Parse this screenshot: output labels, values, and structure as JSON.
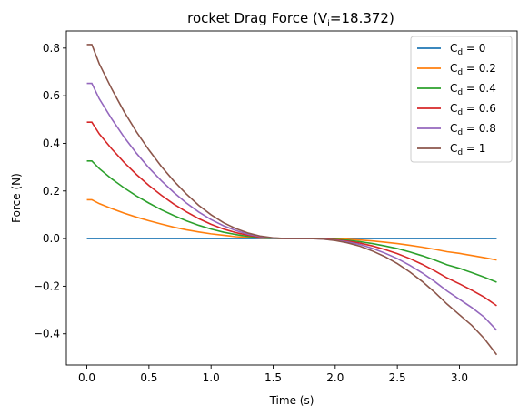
{
  "chart_data": {
    "type": "line",
    "title": "rocket Drag Force (Vᵢ=18.372)",
    "title_main": "rocket Drag Force (V",
    "title_sub": "i",
    "title_tail": "=18.372)",
    "xlabel": "Time (s)",
    "ylabel": "Force (N)",
    "xlim": [
      -0.165,
      3.465
    ],
    "ylim": [
      -0.531,
      0.872
    ],
    "xticks": [
      0.0,
      0.5,
      1.0,
      1.5,
      2.0,
      2.5,
      3.0
    ],
    "xtick_labels": [
      "0.0",
      "0.5",
      "1.0",
      "1.5",
      "2.0",
      "2.5",
      "3.0"
    ],
    "yticks": [
      -0.4,
      -0.2,
      0.0,
      0.2,
      0.4,
      0.6,
      0.8
    ],
    "ytick_labels": [
      "−0.4",
      "−0.2",
      "0.0",
      "0.2",
      "0.4",
      "0.6",
      "0.8"
    ],
    "grid": false,
    "legend_position": "top-right",
    "x": [
      0.0,
      0.04,
      0.1,
      0.2,
      0.3,
      0.4,
      0.5,
      0.6,
      0.7,
      0.8,
      0.9,
      1.0,
      1.1,
      1.2,
      1.3,
      1.4,
      1.5,
      1.6,
      1.7,
      1.8,
      1.9,
      2.0,
      2.1,
      2.2,
      2.3,
      2.4,
      2.5,
      2.6,
      2.7,
      2.8,
      2.9,
      3.0,
      3.1,
      3.2,
      3.3
    ],
    "series": [
      {
        "name": "0",
        "color": "#1f77b4",
        "values": [
          0,
          0,
          0,
          0,
          0,
          0,
          0,
          0,
          0,
          0,
          0,
          0,
          0,
          0,
          0,
          0,
          0,
          0,
          0,
          0,
          0,
          0,
          0,
          0,
          0,
          0,
          0,
          0,
          0,
          0,
          0,
          0,
          0,
          0,
          0
        ]
      },
      {
        "name": "0.2",
        "color": "#ff7f0e",
        "values": [
          0.163,
          0.163,
          0.147,
          0.126,
          0.107,
          0.09,
          0.075,
          0.061,
          0.048,
          0.037,
          0.028,
          0.02,
          0.014,
          0.008,
          0.005,
          0.002,
          0.001,
          0.0,
          0.0,
          0.0,
          -0.0,
          -0.001,
          -0.003,
          -0.006,
          -0.01,
          -0.015,
          -0.021,
          -0.028,
          -0.036,
          -0.045,
          -0.055,
          -0.062,
          -0.071,
          -0.08,
          -0.09
        ]
      },
      {
        "name": "0.4",
        "color": "#2ca02c",
        "values": [
          0.326,
          0.326,
          0.294,
          0.251,
          0.213,
          0.179,
          0.149,
          0.121,
          0.097,
          0.075,
          0.056,
          0.04,
          0.027,
          0.017,
          0.009,
          0.004,
          0.001,
          0.0,
          0.0,
          0.0,
          -0.001,
          -0.003,
          -0.007,
          -0.013,
          -0.021,
          -0.031,
          -0.042,
          -0.056,
          -0.072,
          -0.09,
          -0.11,
          -0.125,
          -0.143,
          -0.162,
          -0.183
        ]
      },
      {
        "name": "0.6",
        "color": "#d62728",
        "values": [
          0.489,
          0.489,
          0.44,
          0.377,
          0.32,
          0.269,
          0.223,
          0.182,
          0.145,
          0.113,
          0.084,
          0.06,
          0.04,
          0.025,
          0.014,
          0.006,
          0.002,
          0.0,
          0.0,
          0.0,
          -0.001,
          -0.005,
          -0.011,
          -0.019,
          -0.031,
          -0.046,
          -0.063,
          -0.084,
          -0.108,
          -0.135,
          -0.165,
          -0.19,
          -0.217,
          -0.246,
          -0.282
        ]
      },
      {
        "name": "0.8",
        "color": "#9467bd",
        "values": [
          0.652,
          0.652,
          0.587,
          0.503,
          0.426,
          0.358,
          0.297,
          0.243,
          0.194,
          0.15,
          0.112,
          0.08,
          0.054,
          0.034,
          0.018,
          0.008,
          0.002,
          0.0,
          0.0,
          0.0,
          -0.002,
          -0.007,
          -0.014,
          -0.025,
          -0.041,
          -0.061,
          -0.084,
          -0.112,
          -0.144,
          -0.18,
          -0.22,
          -0.255,
          -0.29,
          -0.33,
          -0.385
        ]
      },
      {
        "name": "1",
        "color": "#8c564b",
        "values": [
          0.815,
          0.815,
          0.734,
          0.629,
          0.533,
          0.448,
          0.372,
          0.303,
          0.242,
          0.188,
          0.14,
          0.1,
          0.067,
          0.042,
          0.023,
          0.01,
          0.003,
          0.0,
          0.0,
          0.0,
          -0.002,
          -0.008,
          -0.018,
          -0.032,
          -0.052,
          -0.076,
          -0.105,
          -0.14,
          -0.18,
          -0.225,
          -0.275,
          -0.32,
          -0.365,
          -0.42,
          -0.488
        ]
      }
    ],
    "legend_prefix": "C",
    "legend_sub": "d",
    "legend_eq": " = "
  }
}
